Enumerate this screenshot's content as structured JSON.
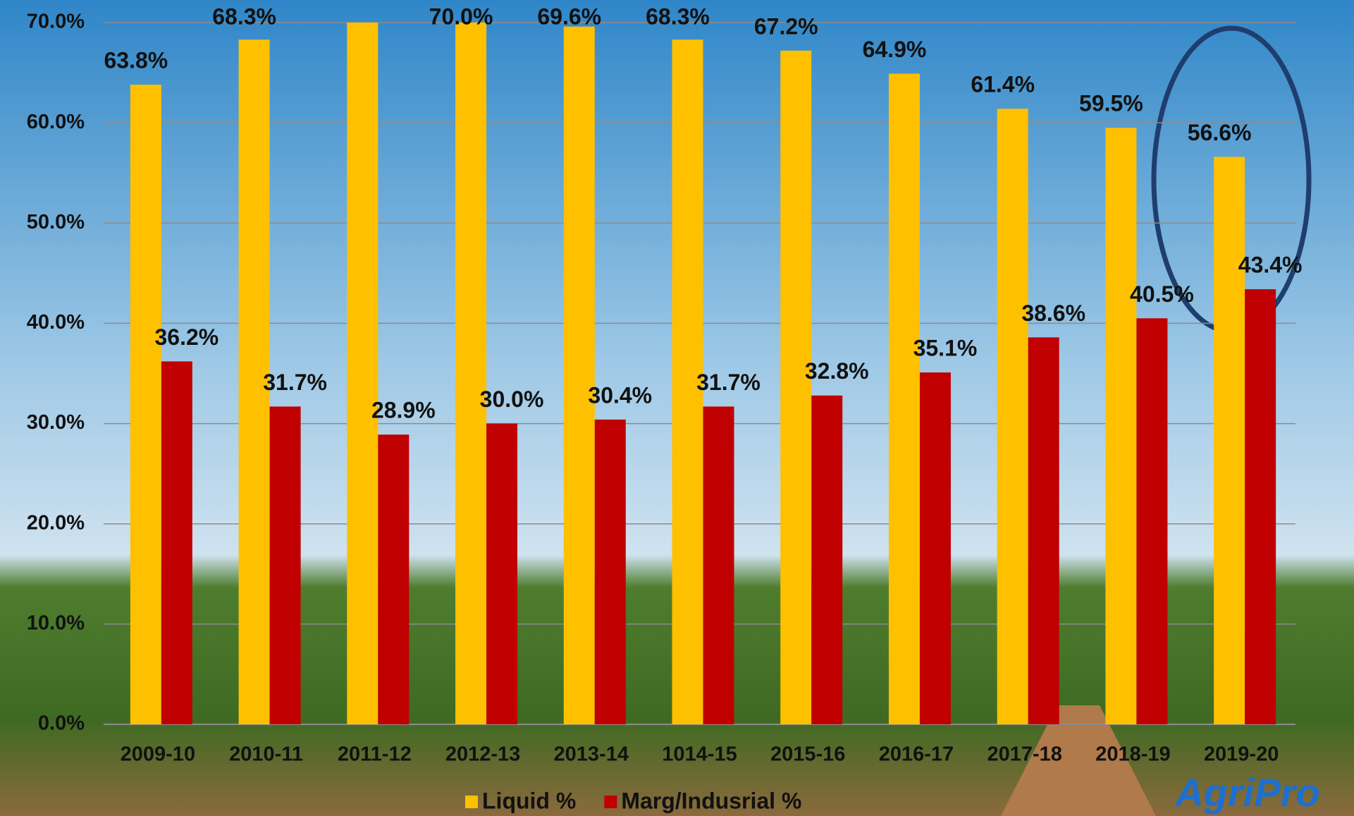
{
  "chart_data": {
    "type": "bar",
    "categories": [
      "2009-10",
      "2010-11",
      "2011-12",
      "2012-13",
      "2013-14",
      "1014-15",
      "2015-16",
      "2016-17",
      "2017-18",
      "2018-19",
      "2019-20"
    ],
    "series": [
      {
        "name": "Liquid %",
        "color": "#FFC000",
        "values": [
          63.8,
          68.3,
          70.0,
          70.0,
          69.6,
          68.3,
          67.2,
          64.9,
          61.4,
          59.5,
          56.6
        ],
        "value_labels": [
          "63.8%",
          "68.3%",
          null,
          "70.0%",
          "69.6%",
          "68.3%",
          "67.2%",
          "64.9%",
          "61.4%",
          "59.5%",
          "56.6%"
        ]
      },
      {
        "name": "Marg/Indusrial %",
        "color": "#C00000",
        "values": [
          36.2,
          31.7,
          28.9,
          30.0,
          30.4,
          31.7,
          32.8,
          35.1,
          38.6,
          40.5,
          43.4
        ],
        "value_labels": [
          "36.2%",
          "31.7%",
          "28.9%",
          "30.0%",
          "30.4%",
          "31.7%",
          "32.8%",
          "35.1%",
          "38.6%",
          "40.5%",
          "43.4%"
        ]
      }
    ],
    "ylim": [
      0,
      70
    ],
    "yticks": [
      {
        "value": 0,
        "label": "0.0%"
      },
      {
        "value": 10,
        "label": "10.0%"
      },
      {
        "value": 20,
        "label": "20.0%"
      },
      {
        "value": 30,
        "label": "30.0%"
      },
      {
        "value": 40,
        "label": "40.0%"
      },
      {
        "value": 50,
        "label": "50.0%"
      },
      {
        "value": 60,
        "label": "60.0%"
      },
      {
        "value": 70,
        "label": "70.0%"
      }
    ],
    "grid": true,
    "legend": "bottom",
    "logo": "AgriPro"
  }
}
